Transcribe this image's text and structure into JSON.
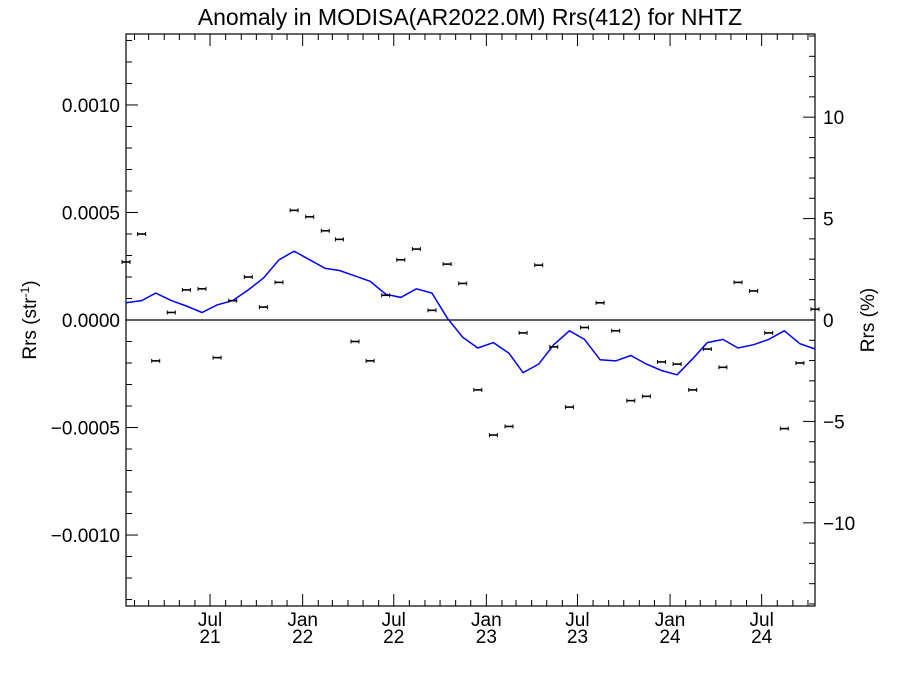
{
  "chart_data": {
    "type": "scatter",
    "title": "Anomaly in MODISA(AR2022.0M) Rrs(412) for NHTZ",
    "ylabel": "Rrs (str",
    "ylabel_sup": "-1",
    "ylabel_close": ")",
    "y2label": "Rrs (%)",
    "xlim": [
      "2021-01-15",
      "2024-10-15"
    ],
    "ylim": [
      -0.00133,
      0.00133
    ],
    "y2lim": [
      -14.1,
      14.1
    ],
    "y_ticks": [
      {
        "value": 0.001,
        "label": "0.0010"
      },
      {
        "value": 0.0005,
        "label": "0.0005"
      },
      {
        "value": 0.0,
        "label": "0.0000"
      },
      {
        "value": -0.0005,
        "label": "−0.0005"
      },
      {
        "value": -0.001,
        "label": "−0.0010"
      }
    ],
    "y2_ticks": [
      {
        "value": 10,
        "label": "10"
      },
      {
        "value": 5,
        "label": "5"
      },
      {
        "value": 0,
        "label": "0"
      },
      {
        "value": -5,
        "label": "−5"
      },
      {
        "value": -10,
        "label": "−10"
      }
    ],
    "x_ticks": [
      {
        "date": "2021-07-01",
        "month": "Jul",
        "year": "21"
      },
      {
        "date": "2022-01-01",
        "month": "Jan",
        "year": "22"
      },
      {
        "date": "2022-07-01",
        "month": "Jul",
        "year": "22"
      },
      {
        "date": "2023-01-01",
        "month": "Jan",
        "year": "23"
      },
      {
        "date": "2023-07-01",
        "month": "Jul",
        "year": "23"
      },
      {
        "date": "2024-01-01",
        "month": "Jan",
        "year": "24"
      },
      {
        "date": "2024-07-01",
        "month": "Jul",
        "year": "24"
      }
    ],
    "zero_line": true,
    "colors": {
      "points": "#000000",
      "line": "#0000ff",
      "axes": "#000000"
    },
    "series": [
      {
        "type": "scatter_errorbar",
        "x": [
          "2021-01-15",
          "2021-02-15",
          "2021-03-15",
          "2021-04-15",
          "2021-05-15",
          "2021-06-15",
          "2021-07-15",
          "2021-08-15",
          "2021-09-15",
          "2021-10-15",
          "2021-11-15",
          "2021-12-15",
          "2022-01-15",
          "2022-02-15",
          "2022-03-15",
          "2022-04-15",
          "2022-05-15",
          "2022-06-15",
          "2022-07-15",
          "2022-08-15",
          "2022-09-15",
          "2022-10-15",
          "2022-11-15",
          "2022-12-15",
          "2023-01-15",
          "2023-02-15",
          "2023-03-15",
          "2023-04-15",
          "2023-05-15",
          "2023-06-15",
          "2023-07-15",
          "2023-08-15",
          "2023-09-15",
          "2023-10-15",
          "2023-11-15",
          "2023-12-15",
          "2024-01-15",
          "2024-02-15",
          "2024-03-15",
          "2024-04-15",
          "2024-05-15",
          "2024-06-15",
          "2024-07-15",
          "2024-08-15",
          "2024-09-15",
          "2024-10-15"
        ],
        "y": [
          0.00027,
          0.0004,
          -0.00019,
          3.5e-05,
          0.00014,
          0.000145,
          -0.000175,
          9e-05,
          0.0002,
          6e-05,
          0.000175,
          0.00051,
          0.00048,
          0.000415,
          0.000375,
          -0.0001,
          -0.00019,
          0.000115,
          0.00028,
          0.00033,
          4.5e-05,
          0.00026,
          0.00017,
          -0.000325,
          -0.000535,
          -0.000495,
          -6e-05,
          0.000255,
          -0.000125,
          -0.000405,
          -3.5e-05,
          8e-05,
          -5e-05,
          -0.000375,
          -0.000355,
          -0.000195,
          -0.000205,
          -0.000325,
          -0.000135,
          -0.00022,
          0.000175,
          0.000135,
          -6e-05,
          -0.000505,
          -0.0002,
          5e-05
        ]
      },
      {
        "type": "line",
        "x": [
          "2021-01-15",
          "2021-02-15",
          "2021-03-15",
          "2021-04-15",
          "2021-05-15",
          "2021-06-15",
          "2021-07-15",
          "2021-08-15",
          "2021-09-15",
          "2021-10-15",
          "2021-11-15",
          "2021-12-15",
          "2022-01-15",
          "2022-02-15",
          "2022-03-15",
          "2022-04-15",
          "2022-05-15",
          "2022-06-15",
          "2022-07-15",
          "2022-08-15",
          "2022-09-15",
          "2022-10-15",
          "2022-11-15",
          "2022-12-15",
          "2023-01-15",
          "2023-02-15",
          "2023-03-15",
          "2023-04-15",
          "2023-05-15",
          "2023-06-15",
          "2023-07-15",
          "2023-08-15",
          "2023-09-15",
          "2023-10-15",
          "2023-11-15",
          "2023-12-15",
          "2024-01-15",
          "2024-02-15",
          "2024-03-15",
          "2024-04-15",
          "2024-05-15",
          "2024-06-15",
          "2024-07-15",
          "2024-08-15",
          "2024-09-15",
          "2024-10-15"
        ],
        "y": [
          8e-05,
          9e-05,
          0.000125,
          9e-05,
          6.5e-05,
          3.5e-05,
          7e-05,
          9e-05,
          0.00014,
          0.000195,
          0.00028,
          0.00032,
          0.00028,
          0.00024,
          0.00023,
          0.000205,
          0.00018,
          0.00012,
          0.000105,
          0.000145,
          0.000125,
          1e-05,
          -8e-05,
          -0.00013,
          -0.000105,
          -0.000155,
          -0.000245,
          -0.000205,
          -0.000115,
          -5e-05,
          -9e-05,
          -0.000185,
          -0.00019,
          -0.000165,
          -0.000205,
          -0.000235,
          -0.000255,
          -0.00018,
          -0.000105,
          -9e-05,
          -0.00013,
          -0.000115,
          -9e-05,
          -5e-05,
          -0.00011,
          -0.000135
        ]
      }
    ]
  }
}
